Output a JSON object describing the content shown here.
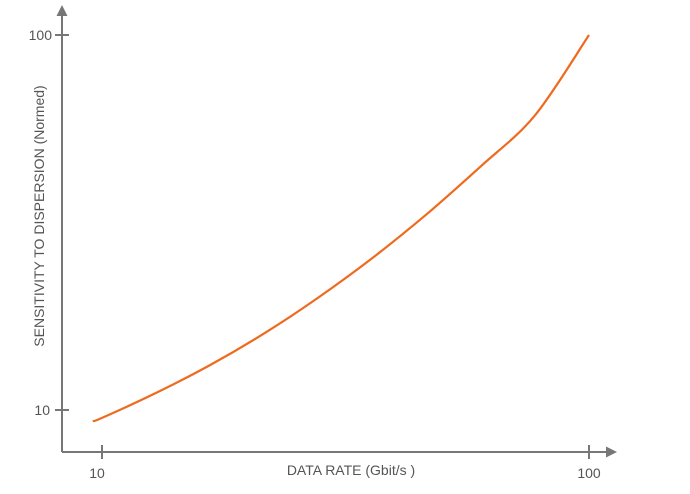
{
  "chart_data": {
    "type": "line",
    "title": "",
    "xlabel": "DATA RATE (Gbit/s )",
    "ylabel": "SENSITIVITY TO DISPERSION (Normed)",
    "x_ticks": [
      "10",
      "100"
    ],
    "y_ticks": [
      "10",
      "100"
    ],
    "x": [
      8.3,
      10,
      20,
      30,
      40,
      50,
      60,
      70,
      80,
      90,
      100
    ],
    "y": [
      7.3,
      8.1,
      14.1,
      20.8,
      28.4,
      37.0,
      46.5,
      57.0,
      68.5,
      80.7,
      100
    ],
    "grid": false,
    "colors": {
      "series": "#ee6a1f",
      "axis": "#777777",
      "text": "#555555"
    }
  }
}
